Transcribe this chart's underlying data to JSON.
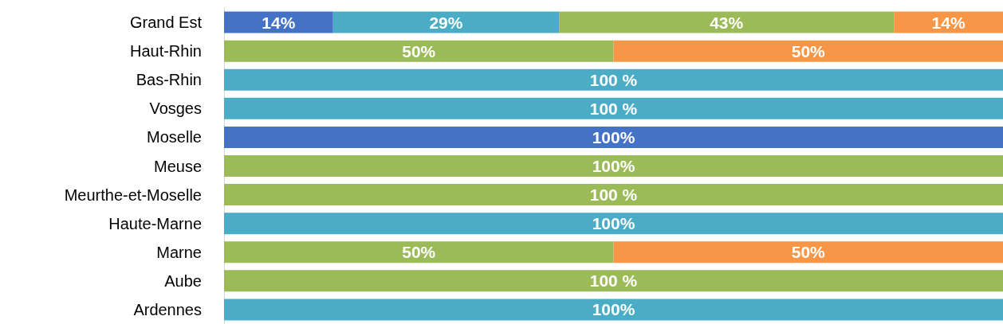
{
  "chart_data": {
    "type": "bar",
    "orientation": "horizontal",
    "stacked": true,
    "categories": [
      "Grand Est",
      "Haut-Rhin",
      "Bas-Rhin",
      "Vosges",
      "Moselle",
      "Meuse",
      "Meurthe-et-Moselle",
      "Haute-Marne",
      "Marne",
      "Aube",
      "Ardennes"
    ],
    "series": [
      {
        "color": "#4472c4",
        "values": [
          14,
          null,
          null,
          null,
          100,
          null,
          null,
          null,
          null,
          null,
          null
        ],
        "value_labels": [
          "14%",
          null,
          null,
          null,
          "100%",
          null,
          null,
          null,
          null,
          null,
          null
        ]
      },
      {
        "color": "#4bacc6",
        "values": [
          29,
          null,
          100,
          100,
          null,
          null,
          null,
          100,
          null,
          null,
          100
        ],
        "value_labels": [
          "29%",
          null,
          "100 %",
          "100 %",
          null,
          null,
          null,
          "100%",
          null,
          null,
          "100%"
        ]
      },
      {
        "color": "#9bbb59",
        "values": [
          43,
          50,
          null,
          null,
          null,
          100,
          100,
          null,
          50,
          100,
          null
        ],
        "value_labels": [
          "43%",
          "50%",
          null,
          null,
          null,
          "100%",
          "100 %",
          null,
          "50%",
          "100 %",
          null
        ]
      },
      {
        "color": "#f79646",
        "values": [
          14,
          50,
          null,
          null,
          null,
          null,
          null,
          null,
          50,
          null,
          null
        ],
        "value_labels": [
          "14%",
          "50%",
          null,
          null,
          null,
          null,
          null,
          null,
          "50%",
          null,
          null
        ]
      }
    ],
    "xlim": [
      0,
      100
    ],
    "tick_labels": "y"
  }
}
